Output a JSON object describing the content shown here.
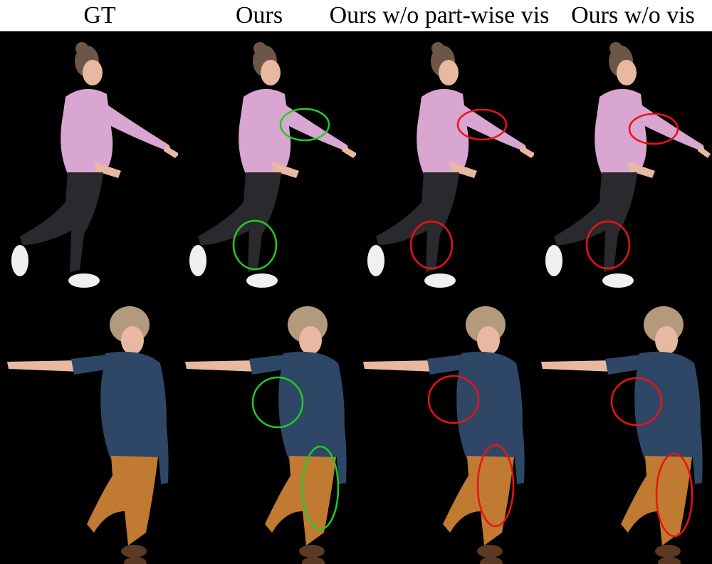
{
  "headers": [
    "GT",
    "Ours",
    "Ours w/o part-wise vis",
    "Ours w/o vis"
  ],
  "colors": {
    "good_marker": "#22cc22",
    "bad_marker": "#ee1111",
    "background": "#000000",
    "top_shirt": "#d9a6d2",
    "top_pants": "#2a2a2e",
    "bottom_shirt": "#2e4766",
    "bottom_pants": "#c07a32",
    "hair_top": "#6b5648",
    "hair_bottom": "#b49a7c",
    "skin": "#e8b9a0"
  }
}
